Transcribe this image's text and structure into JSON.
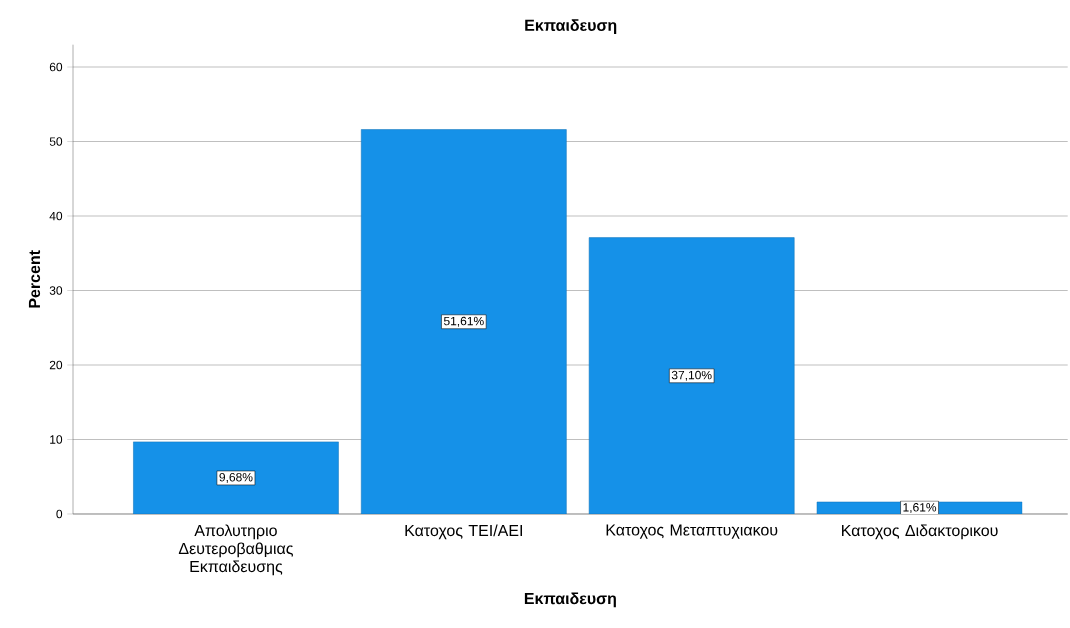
{
  "chart_data": {
    "type": "bar",
    "title": "Εκπαιδευση",
    "xlabel": "Εκπαιδευση",
    "ylabel": "Percent",
    "categories": [
      "Απολυτηριο Δευτεροβαθμιας Εκπαιδευσης",
      "Κατοχος ΤΕΙ/ΑΕΙ",
      "Κατοχος Μεταπτυχιακου",
      "Κατοχος Διδακτορικου"
    ],
    "values": [
      9.68,
      51.61,
      37.1,
      1.61
    ],
    "value_labels": [
      "9,68%",
      "51,61%",
      "37,10%",
      "1,61%"
    ],
    "color": "#1591e8",
    "ylim": [
      0,
      63
    ],
    "yticks": [
      0,
      10,
      20,
      30,
      40,
      50,
      60
    ],
    "grid": "y"
  }
}
